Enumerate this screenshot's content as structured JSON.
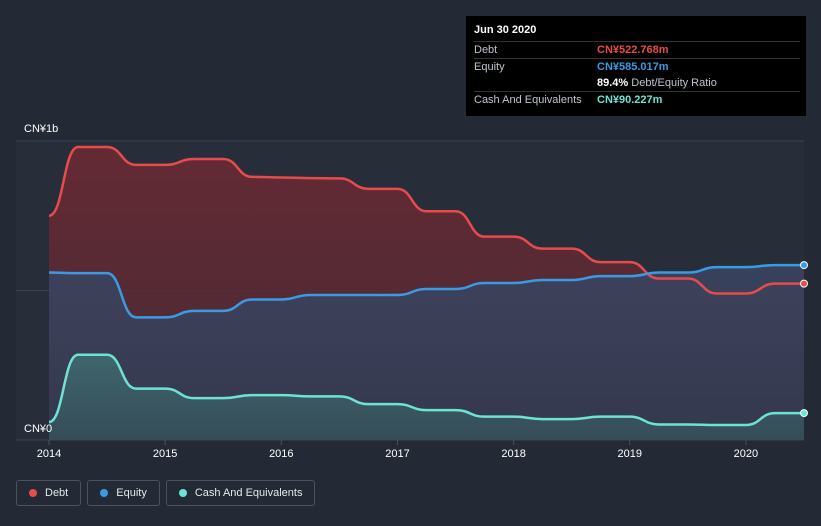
{
  "tooltip": {
    "date": "Jun 30 2020",
    "rows": [
      {
        "label": "Debt",
        "value": "CN¥522.768m"
      },
      {
        "label": "Equity",
        "value": "CN¥585.017m"
      },
      {
        "label": "",
        "value": "89.4%",
        "sub": "Debt/Equity Ratio"
      },
      {
        "label": "Cash And Equivalents",
        "value": "CN¥90.227m"
      }
    ]
  },
  "legend": [
    {
      "label": "Debt",
      "color": "#e64b4e"
    },
    {
      "label": "Equity",
      "color": "#3a9be3"
    },
    {
      "label": "Cash And Equivalents",
      "color": "#6ee3d4"
    }
  ],
  "chart_data": {
    "type": "area",
    "y_axis_labels": [
      "CN¥1b",
      "CN¥0"
    ],
    "ylim": [
      0,
      1000
    ],
    "xlim": [
      2014.0,
      2020.5
    ],
    "x_ticks": [
      "2014",
      "2015",
      "2016",
      "2017",
      "2018",
      "2019",
      "2020"
    ],
    "series": [
      {
        "name": "Debt",
        "color": "#e64b4e",
        "x": [
          2014.0,
          2014.25,
          2014.5,
          2014.75,
          2015.0,
          2015.25,
          2015.5,
          2015.75,
          2016.0,
          2016.25,
          2016.5,
          2016.75,
          2017.0,
          2017.25,
          2017.5,
          2017.75,
          2018.0,
          2018.25,
          2018.5,
          2018.75,
          2019.0,
          2019.25,
          2019.5,
          2019.75,
          2020.0,
          2020.25,
          2020.5
        ],
        "values": [
          750,
          980,
          980,
          920,
          920,
          940,
          940,
          880,
          878,
          876,
          875,
          840,
          840,
          765,
          765,
          680,
          680,
          640,
          640,
          595,
          595,
          540,
          540,
          490,
          490,
          523,
          523
        ]
      },
      {
        "name": "Equity",
        "color": "#3a9be3",
        "x": [
          2014.0,
          2014.25,
          2014.5,
          2014.75,
          2015.0,
          2015.25,
          2015.5,
          2015.75,
          2016.0,
          2016.25,
          2016.5,
          2016.75,
          2017.0,
          2017.25,
          2017.5,
          2017.75,
          2018.0,
          2018.25,
          2018.5,
          2018.75,
          2019.0,
          2019.25,
          2019.5,
          2019.75,
          2020.0,
          2020.25,
          2020.5
        ],
        "values": [
          560,
          558,
          558,
          410,
          410,
          432,
          432,
          470,
          470,
          485,
          485,
          485,
          485,
          505,
          505,
          525,
          525,
          535,
          535,
          548,
          548,
          560,
          560,
          578,
          578,
          585,
          585
        ]
      },
      {
        "name": "Cash And Equivalents",
        "color": "#6ee3d4",
        "x": [
          2014.0,
          2014.25,
          2014.5,
          2014.75,
          2015.0,
          2015.25,
          2015.5,
          2015.75,
          2016.0,
          2016.25,
          2016.5,
          2016.75,
          2017.0,
          2017.25,
          2017.5,
          2017.75,
          2018.0,
          2018.25,
          2018.5,
          2018.75,
          2019.0,
          2019.25,
          2019.5,
          2019.75,
          2020.0,
          2020.25,
          2020.5
        ],
        "values": [
          60,
          285,
          285,
          172,
          172,
          140,
          140,
          150,
          150,
          146,
          146,
          120,
          120,
          100,
          100,
          78,
          78,
          70,
          70,
          78,
          78,
          52,
          52,
          50,
          50,
          90,
          90
        ]
      }
    ]
  }
}
